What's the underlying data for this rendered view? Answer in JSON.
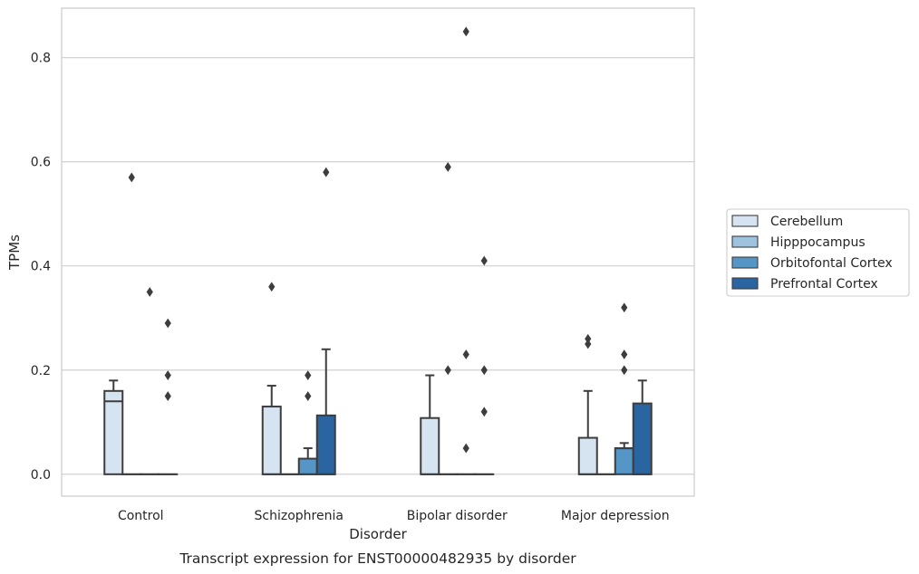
{
  "chart_data": {
    "type": "box",
    "title": "",
    "caption": "Transcript expression for ENST00000482935 by disorder",
    "xlabel": "Disorder",
    "ylabel": "TPMs",
    "ylim": [
      -0.042,
      0.895
    ],
    "yticks": [
      0.0,
      0.2,
      0.4,
      0.6,
      0.8
    ],
    "ytick_labels": [
      "0.0",
      "0.2",
      "0.4",
      "0.6",
      "0.8"
    ],
    "grid": "horizontal",
    "legend_placement": "right",
    "categories": [
      "Control",
      "Schizophrenia",
      "Bipolar disorder",
      "Major depression"
    ],
    "series": [
      {
        "name": "Cerebellum",
        "color": "#d6e4f2",
        "boxes": [
          {
            "q1": 0.0,
            "median": 0.14,
            "q3": 0.16,
            "whislo": 0.0,
            "whishi": 0.18,
            "fliers": []
          },
          {
            "q1": 0.0,
            "median": 0.0,
            "q3": 0.13,
            "whislo": 0.0,
            "whishi": 0.17,
            "fliers": [
              0.36
            ]
          },
          {
            "q1": 0.0,
            "median": 0.0,
            "q3": 0.108,
            "whislo": 0.0,
            "whishi": 0.19,
            "fliers": []
          },
          {
            "q1": 0.0,
            "median": 0.0,
            "q3": 0.07,
            "whislo": 0.0,
            "whishi": 0.16,
            "fliers": [
              0.25,
              0.26
            ]
          }
        ]
      },
      {
        "name": "Hipppocampus",
        "color": "#9dc3de",
        "boxes": [
          {
            "q1": 0.0,
            "median": 0.0,
            "q3": 0.0,
            "whislo": 0.0,
            "whishi": 0.0,
            "fliers": [
              0.57
            ]
          },
          {
            "q1": 0.0,
            "median": 0.0,
            "q3": 0.0,
            "whislo": 0.0,
            "whishi": 0.0,
            "fliers": []
          },
          {
            "q1": 0.0,
            "median": 0.0,
            "q3": 0.0,
            "whislo": 0.0,
            "whishi": 0.0,
            "fliers": [
              0.2,
              0.59
            ]
          },
          {
            "q1": 0.0,
            "median": 0.0,
            "q3": 0.0,
            "whislo": 0.0,
            "whishi": 0.0,
            "fliers": []
          }
        ]
      },
      {
        "name": "Orbitofontal Cortex",
        "color": "#5596c7",
        "boxes": [
          {
            "q1": 0.0,
            "median": 0.0,
            "q3": 0.0,
            "whislo": 0.0,
            "whishi": 0.0,
            "fliers": [
              0.35
            ]
          },
          {
            "q1": 0.0,
            "median": 0.0,
            "q3": 0.03,
            "whislo": 0.0,
            "whishi": 0.05,
            "fliers": [
              0.15,
              0.19
            ]
          },
          {
            "q1": 0.0,
            "median": 0.0,
            "q3": 0.0,
            "whislo": 0.0,
            "whishi": 0.0,
            "fliers": [
              0.05,
              0.23,
              0.85
            ]
          },
          {
            "q1": 0.0,
            "median": 0.05,
            "q3": 0.05,
            "whislo": 0.0,
            "whishi": 0.06,
            "fliers": [
              0.2,
              0.23,
              0.32
            ]
          }
        ]
      },
      {
        "name": "Prefrontal Cortex",
        "color": "#2a64a1",
        "boxes": [
          {
            "q1": 0.0,
            "median": 0.0,
            "q3": 0.0,
            "whislo": 0.0,
            "whishi": 0.0,
            "fliers": [
              0.15,
              0.19,
              0.29
            ]
          },
          {
            "q1": 0.0,
            "median": 0.0,
            "q3": 0.113,
            "whislo": 0.0,
            "whishi": 0.24,
            "fliers": [
              0.58
            ]
          },
          {
            "q1": 0.0,
            "median": 0.0,
            "q3": 0.0,
            "whislo": 0.0,
            "whishi": 0.0,
            "fliers": [
              0.12,
              0.2,
              0.41
            ]
          },
          {
            "q1": 0.0,
            "median": 0.0,
            "q3": 0.136,
            "whislo": 0.0,
            "whishi": 0.18,
            "fliers": []
          }
        ]
      }
    ]
  },
  "colors": {
    "edge": "#3d3d3d",
    "grid": "#cccccc",
    "frame": "#cccccc",
    "text": "#262626"
  }
}
